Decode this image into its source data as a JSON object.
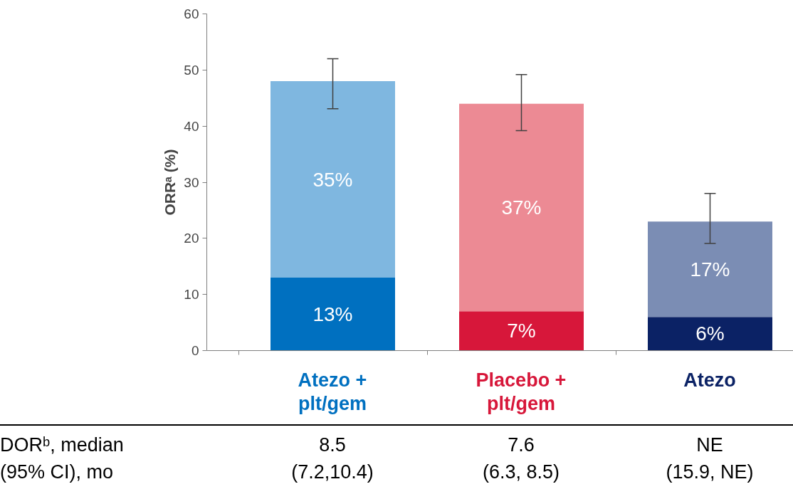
{
  "chart_data": {
    "type": "bar",
    "stacked": true,
    "ylabel": "ORRᵃ (%)",
    "categories": [
      "Atezo +\nplt/gem",
      "Placebo +\nplt/gem",
      "Atezo"
    ],
    "series": [
      {
        "colors": [
          "#0070c0",
          "#d7173a",
          "#0b2265"
        ],
        "values": [
          13,
          7,
          6
        ],
        "value_labels": [
          "13%",
          "7%",
          "6%"
        ]
      },
      {
        "colors": [
          "#7fb7e0",
          "#ec8a94",
          "#7b8db4"
        ],
        "values": [
          35,
          37,
          17
        ],
        "value_labels": [
          "35%",
          "37%",
          "17%"
        ],
        "errors": [
          [
            43.1,
            52
          ],
          [
            39.2,
            49.2
          ],
          [
            19.1,
            28
          ]
        ]
      }
    ],
    "ylim": [
      0,
      60
    ],
    "yticks": [
      0,
      10,
      20,
      30,
      40,
      50,
      60
    ],
    "grid": false,
    "annotations": [
      "DORᵇ, median\n(95% CI), mo",
      "8.5\n(7.2,10.4)",
      "7.6\n(6.3, 8.5)",
      "NE\n(15.9, NE)"
    ]
  }
}
